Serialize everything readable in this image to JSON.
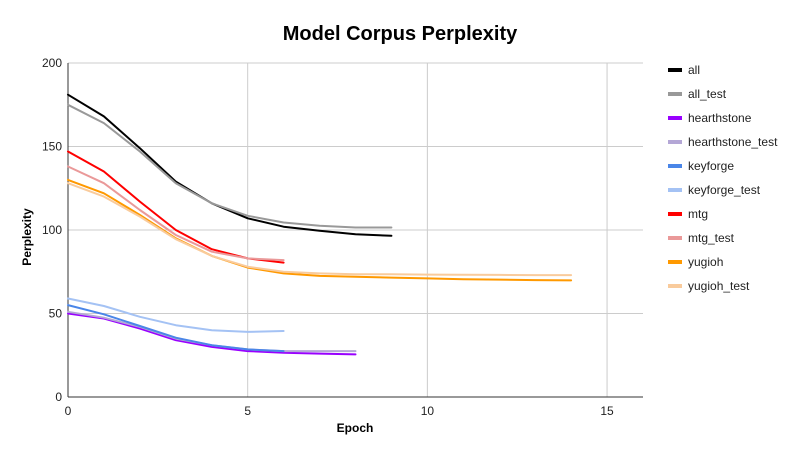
{
  "chart_data": {
    "type": "line",
    "title": "Model Corpus Perplexity",
    "xlabel": "Epoch",
    "ylabel": "Perplexity",
    "xlim": [
      0,
      16
    ],
    "ylim": [
      0,
      200
    ],
    "xticks": [
      0,
      5,
      10,
      15
    ],
    "yticks": [
      0,
      50,
      100,
      150,
      200
    ],
    "grid": true,
    "legend_position": "right",
    "series": [
      {
        "name": "all",
        "color": "#000000",
        "x": [
          0,
          1,
          2,
          3,
          4,
          5,
          6,
          7,
          8,
          9
        ],
        "y": [
          181,
          168,
          149,
          129,
          116,
          107,
          102,
          99.5,
          97.5,
          96.5
        ]
      },
      {
        "name": "all_test",
        "color": "#999999",
        "x": [
          0,
          1,
          2,
          3,
          4,
          5,
          6,
          7,
          8,
          9
        ],
        "y": [
          175,
          164,
          147,
          128,
          116,
          108.5,
          104.5,
          102.5,
          101.5,
          101.5
        ]
      },
      {
        "name": "hearthstone",
        "color": "#9900ff",
        "x": [
          0,
          1,
          2,
          3,
          4,
          5,
          6,
          7,
          8
        ],
        "y": [
          50,
          47,
          41,
          34,
          30,
          27.5,
          26.5,
          26,
          25.5
        ]
      },
      {
        "name": "hearthstone_test",
        "color": "#b4a7d6",
        "x": [
          0,
          1,
          2,
          3,
          4,
          5,
          6,
          7,
          8
        ],
        "y": [
          51,
          47.5,
          42,
          35,
          31,
          28.5,
          27.5,
          27.5,
          27.5
        ]
      },
      {
        "name": "keyforge",
        "color": "#4a86e8",
        "x": [
          0,
          1,
          2,
          3,
          4,
          5,
          6
        ],
        "y": [
          55,
          49.5,
          42.5,
          35.5,
          31,
          28.5,
          27.5
        ]
      },
      {
        "name": "keyforge_test",
        "color": "#a4c2f4",
        "x": [
          0,
          1,
          2,
          3,
          4,
          5,
          6
        ],
        "y": [
          59,
          54.5,
          48,
          43,
          40,
          39,
          39.5
        ]
      },
      {
        "name": "mtg",
        "color": "#ff0000",
        "x": [
          0,
          1,
          2,
          3,
          4,
          5,
          6
        ],
        "y": [
          147,
          135,
          117,
          100,
          88.5,
          83,
          80.5
        ]
      },
      {
        "name": "mtg_test",
        "color": "#ea9999",
        "x": [
          0,
          1,
          2,
          3,
          4,
          5,
          6
        ],
        "y": [
          138,
          128,
          112,
          97,
          87,
          83,
          82
        ]
      },
      {
        "name": "yugioh",
        "color": "#ff9900",
        "x": [
          0,
          1,
          2,
          3,
          4,
          5,
          6,
          7,
          8,
          9,
          10,
          11,
          12,
          13,
          14
        ],
        "y": [
          130,
          122,
          109,
          95,
          84.5,
          77.5,
          74,
          72.5,
          72,
          71.5,
          71,
          70.5,
          70.3,
          70,
          69.8
        ]
      },
      {
        "name": "yugioh_test",
        "color": "#f9cb9c",
        "x": [
          0,
          1,
          2,
          3,
          4,
          5,
          6,
          7,
          8,
          9,
          10,
          11,
          12,
          13,
          14
        ],
        "y": [
          128,
          120,
          108,
          94.5,
          84.5,
          78,
          75,
          74,
          73.5,
          73.5,
          73.3,
          73.2,
          73.1,
          73,
          73
        ]
      }
    ]
  }
}
